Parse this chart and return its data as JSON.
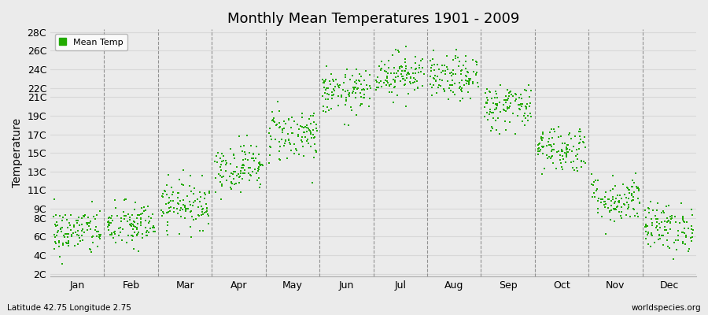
{
  "title": "Monthly Mean Temperatures 1901 - 2009",
  "ylabel": "Temperature",
  "bottom_left": "Latitude 42.75 Longitude 2.75",
  "bottom_right": "worldspecies.org",
  "legend_label": "Mean Temp",
  "marker_color": "#22aa00",
  "background_color": "#ebebeb",
  "ytick_labels": [
    "2C",
    "4C",
    "6C",
    "8C",
    "9C",
    "11C",
    "13C",
    "15C",
    "17C",
    "19C",
    "21C",
    "22C",
    "24C",
    "26C",
    "28C"
  ],
  "ytick_values": [
    2,
    4,
    6,
    8,
    9,
    11,
    13,
    15,
    17,
    19,
    21,
    22,
    24,
    26,
    28
  ],
  "ylim": [
    2,
    28
  ],
  "monthly_means": [
    6.5,
    7.2,
    9.5,
    13.5,
    17.0,
    21.5,
    23.5,
    23.0,
    20.0,
    15.5,
    10.0,
    7.0
  ],
  "monthly_stds": [
    1.3,
    1.3,
    1.3,
    1.3,
    1.5,
    1.2,
    1.2,
    1.2,
    1.3,
    1.3,
    1.3,
    1.3
  ],
  "n_years": 109,
  "month_names": [
    "Jan",
    "Feb",
    "Mar",
    "Apr",
    "May",
    "Jun",
    "Jul",
    "Aug",
    "Sep",
    "Oct",
    "Nov",
    "Dec"
  ],
  "dashed_line_color": "#888888",
  "grid_color": "#d8d8d8",
  "marker_size": 4
}
